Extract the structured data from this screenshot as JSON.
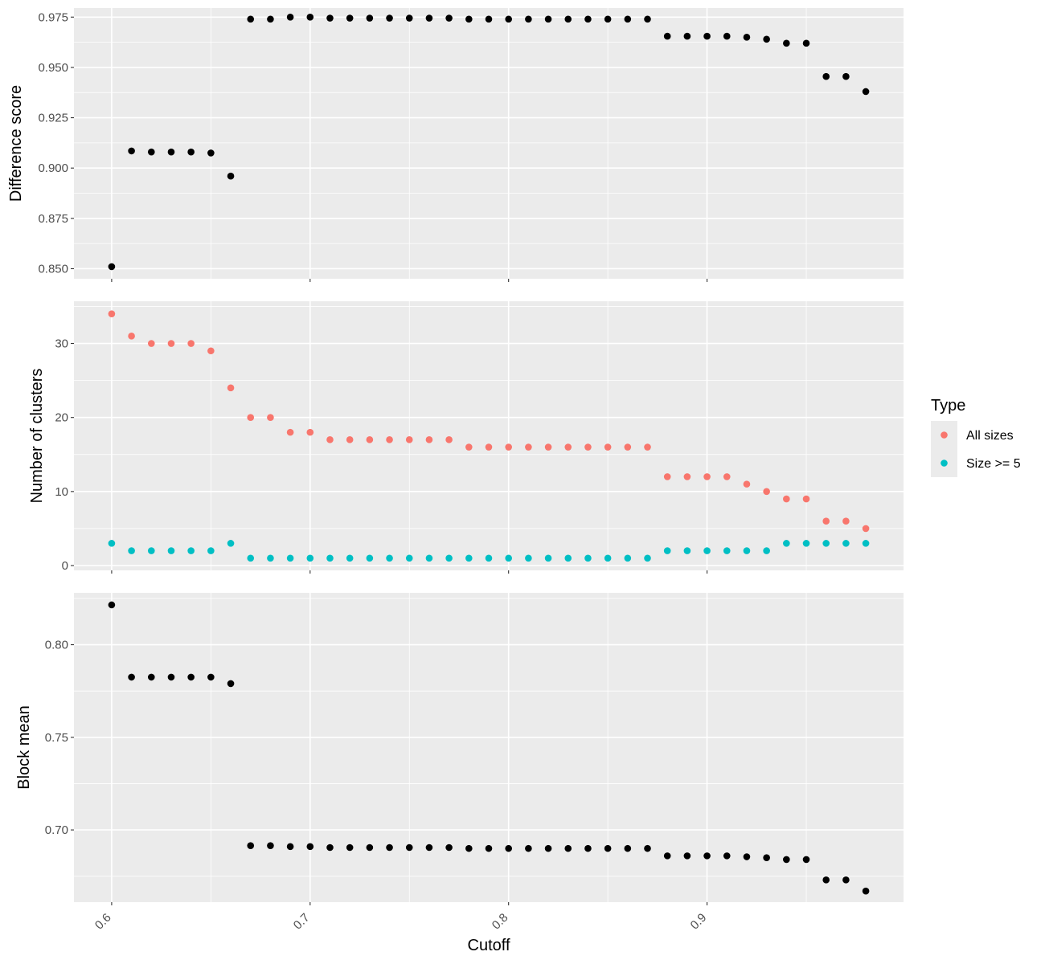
{
  "chart_data": {
    "type": "scatter",
    "xlabel": "Cutoff",
    "xlim": [
      0.581,
      0.999
    ],
    "x_ticks": [
      "0.6",
      "0.7",
      "0.8",
      "0.9"
    ],
    "x": [
      0.6,
      0.61,
      0.62,
      0.63,
      0.64,
      0.65,
      0.66,
      0.67,
      0.68,
      0.69,
      0.7,
      0.71,
      0.72,
      0.73,
      0.74,
      0.75,
      0.76,
      0.77,
      0.78,
      0.79,
      0.8,
      0.81,
      0.82,
      0.83,
      0.84,
      0.85,
      0.86,
      0.87,
      0.88,
      0.89,
      0.9,
      0.91,
      0.92,
      0.93,
      0.94,
      0.95,
      0.96,
      0.97,
      0.98
    ],
    "panels": [
      {
        "ylabel": "Difference score",
        "ylim": [
          0.845,
          0.9795
        ],
        "y_ticks": [
          "0.850",
          "0.875",
          "0.900",
          "0.925",
          "0.950",
          "0.975"
        ],
        "series": [
          {
            "color": "#000000",
            "values": [
              0.851,
              0.9085,
              0.908,
              0.908,
              0.908,
              0.9075,
              0.896,
              0.974,
              0.974,
              0.975,
              0.975,
              0.9745,
              0.9745,
              0.9745,
              0.9745,
              0.9745,
              0.9745,
              0.9745,
              0.974,
              0.974,
              0.974,
              0.974,
              0.974,
              0.974,
              0.974,
              0.974,
              0.974,
              0.974,
              0.9655,
              0.9655,
              0.9655,
              0.9655,
              0.965,
              0.964,
              0.962,
              0.962,
              0.9455,
              0.9455,
              0.938
            ]
          }
        ]
      },
      {
        "ylabel": "Number of clusters",
        "ylim": [
          -0.65,
          35.7
        ],
        "y_ticks": [
          "0",
          "10",
          "20",
          "30"
        ],
        "series": [
          {
            "name": "All sizes",
            "color": "#F8766D",
            "values": [
              34,
              31,
              30,
              30,
              30,
              29,
              24,
              20,
              20,
              18,
              18,
              17,
              17,
              17,
              17,
              17,
              17,
              17,
              16,
              16,
              16,
              16,
              16,
              16,
              16,
              16,
              16,
              16,
              12,
              12,
              12,
              12,
              11,
              10,
              9,
              9,
              6,
              6,
              5
            ]
          },
          {
            "name": "Size >= 5",
            "color": "#00BFC4",
            "values": [
              3,
              2,
              2,
              2,
              2,
              2,
              3,
              1,
              1,
              1,
              1,
              1,
              1,
              1,
              1,
              1,
              1,
              1,
              1,
              1,
              1,
              1,
              1,
              1,
              1,
              1,
              1,
              1,
              2,
              2,
              2,
              2,
              2,
              2,
              3,
              3,
              3,
              3,
              3
            ]
          }
        ]
      },
      {
        "ylabel": "Block mean",
        "ylim": [
          0.661,
          0.828
        ],
        "y_ticks": [
          "0.70",
          "0.75",
          "0.80"
        ],
        "series": [
          {
            "color": "#000000",
            "values": [
              0.8215,
              0.7825,
              0.7825,
              0.7825,
              0.7825,
              0.7825,
              0.779,
              0.6915,
              0.6915,
              0.691,
              0.691,
              0.6905,
              0.6905,
              0.6905,
              0.6905,
              0.6905,
              0.6905,
              0.6905,
              0.69,
              0.69,
              0.69,
              0.69,
              0.69,
              0.69,
              0.69,
              0.69,
              0.69,
              0.69,
              0.686,
              0.686,
              0.686,
              0.686,
              0.6855,
              0.685,
              0.684,
              0.684,
              0.673,
              0.673,
              0.667
            ]
          }
        ]
      }
    ],
    "legend": {
      "title": "Type",
      "position": "right",
      "entries": [
        "All sizes",
        "Size >= 5"
      ],
      "colors": [
        "#F8766D",
        "#00BFC4"
      ]
    },
    "panel_background": "#EBEBEB",
    "grid": true
  }
}
